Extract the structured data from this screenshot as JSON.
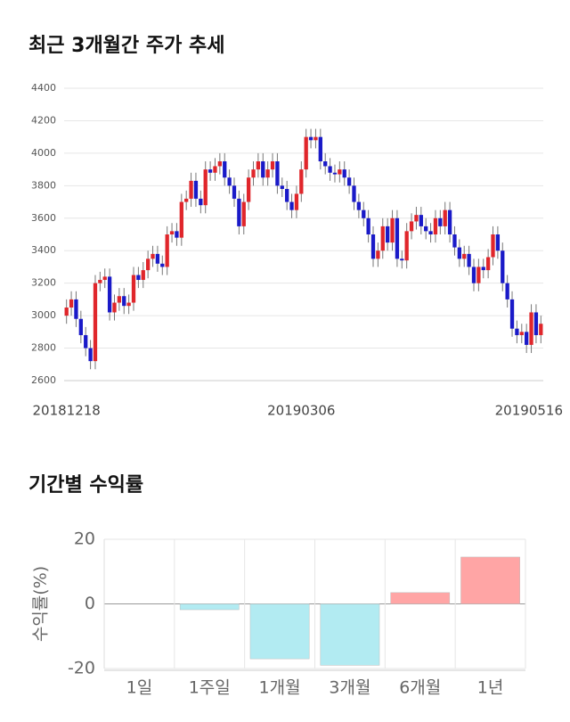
{
  "chart_data": [
    {
      "type": "candlestick",
      "title": "최근 3개월간 주가 추세",
      "categories": [
        "20181218",
        null,
        null,
        null,
        null,
        null,
        null,
        null,
        null,
        null,
        null,
        null,
        null,
        null,
        null,
        null,
        null,
        null,
        null,
        null,
        null,
        null,
        null,
        null,
        null,
        null,
        null,
        null,
        null,
        null,
        null,
        null,
        null,
        null,
        null,
        null,
        null,
        null,
        null,
        null,
        null,
        null,
        null,
        null,
        null,
        null,
        null,
        null,
        null,
        "20190306",
        null,
        null,
        null,
        null,
        null,
        null,
        null,
        null,
        null,
        null,
        null,
        null,
        null,
        null,
        null,
        null,
        null,
        null,
        null,
        null,
        null,
        null,
        null,
        null,
        null,
        null,
        null,
        null,
        null,
        null,
        null,
        null,
        null,
        null,
        null,
        null,
        null,
        null,
        null,
        null,
        null,
        null,
        null,
        null,
        null,
        null,
        null,
        null,
        null,
        "20190516"
      ],
      "open": [
        3000,
        3050,
        3100,
        2980,
        2880,
        2800,
        2720,
        3200,
        3220,
        3240,
        3020,
        3080,
        3120,
        3060,
        3080,
        3250,
        3220,
        3280,
        3350,
        3380,
        3320,
        3300,
        3500,
        3520,
        3480,
        3700,
        3720,
        3830,
        3720,
        3680,
        3900,
        3880,
        3920,
        3950,
        3850,
        3800,
        3720,
        3550,
        3700,
        3850,
        3900,
        3950,
        3850,
        3900,
        3950,
        3800,
        3780,
        3700,
        3650,
        3750,
        3900,
        4100,
        4080,
        4100,
        3950,
        3920,
        3880,
        3870,
        3900,
        3850,
        3800,
        3700,
        3650,
        3600,
        3500,
        3350,
        3400,
        3550,
        3450,
        3600,
        3350,
        3340,
        3520,
        3580,
        3620,
        3550,
        3520,
        3500,
        3600,
        3550,
        3650,
        3500,
        3420,
        3350,
        3380,
        3300,
        3200,
        3300,
        3280,
        3360,
        3500,
        3400,
        3200,
        3100,
        2920,
        2880,
        2900,
        2820,
        3020,
        2880
      ],
      "high": [
        3100,
        3150,
        3150,
        3030,
        2930,
        2850,
        3250,
        3270,
        3290,
        3290,
        3130,
        3170,
        3170,
        3130,
        3300,
        3300,
        3330,
        3400,
        3430,
        3430,
        3370,
        3550,
        3570,
        3570,
        3750,
        3770,
        3880,
        3880,
        3770,
        3950,
        3950,
        3970,
        4000,
        4000,
        3900,
        3850,
        3770,
        3750,
        3900,
        3950,
        4000,
        4000,
        3950,
        4000,
        4000,
        3850,
        3830,
        3750,
        3800,
        3950,
        4150,
        4150,
        4150,
        4150,
        4000,
        3970,
        3930,
        3950,
        3950,
        3900,
        3850,
        3750,
        3700,
        3650,
        3550,
        3450,
        3600,
        3600,
        3650,
        3650,
        3400,
        3570,
        3630,
        3670,
        3670,
        3600,
        3570,
        3650,
        3650,
        3700,
        3700,
        3550,
        3470,
        3430,
        3430,
        3350,
        3350,
        3350,
        3410,
        3550,
        3550,
        3450,
        3250,
        3150,
        2970,
        2950,
        2950,
        3070,
        3070,
        3000
      ],
      "low": [
        2950,
        3000,
        2930,
        2830,
        2750,
        2670,
        2670,
        3150,
        3170,
        2970,
        2970,
        3030,
        3010,
        3010,
        3030,
        3170,
        3170,
        3230,
        3300,
        3270,
        3250,
        3250,
        3450,
        3430,
        3430,
        3650,
        3670,
        3670,
        3630,
        3630,
        3830,
        3830,
        3870,
        3800,
        3750,
        3670,
        3500,
        3500,
        3650,
        3800,
        3850,
        3800,
        3800,
        3850,
        3750,
        3730,
        3650,
        3600,
        3600,
        3700,
        3850,
        4030,
        4030,
        3900,
        3870,
        3830,
        3820,
        3820,
        3800,
        3750,
        3650,
        3600,
        3550,
        3450,
        3300,
        3300,
        3350,
        3400,
        3400,
        3300,
        3290,
        3290,
        3470,
        3530,
        3500,
        3470,
        3450,
        3450,
        3500,
        3500,
        3450,
        3370,
        3300,
        3300,
        3250,
        3150,
        3150,
        3230,
        3230,
        3310,
        3350,
        3150,
        3050,
        2870,
        2830,
        2830,
        2770,
        2770,
        2830,
        2830
      ],
      "close": [
        3050,
        3100,
        2980,
        2880,
        2800,
        2720,
        3200,
        3220,
        3240,
        3020,
        3080,
        3120,
        3060,
        3080,
        3250,
        3220,
        3280,
        3350,
        3380,
        3320,
        3300,
        3500,
        3520,
        3480,
        3700,
        3720,
        3830,
        3720,
        3680,
        3900,
        3880,
        3920,
        3950,
        3850,
        3800,
        3720,
        3550,
        3700,
        3850,
        3900,
        3950,
        3850,
        3900,
        3950,
        3800,
        3780,
        3700,
        3650,
        3750,
        3900,
        4100,
        4080,
        4100,
        3950,
        3920,
        3880,
        3870,
        3900,
        3850,
        3800,
        3700,
        3650,
        3600,
        3500,
        3350,
        3400,
        3550,
        3450,
        3600,
        3350,
        3340,
        3520,
        3580,
        3620,
        3550,
        3520,
        3500,
        3600,
        3550,
        3650,
        3500,
        3420,
        3350,
        3380,
        3300,
        3200,
        3300,
        3280,
        3360,
        3500,
        3400,
        3200,
        3100,
        2920,
        2880,
        2900,
        2820,
        3020,
        2880,
        2950
      ],
      "up_color": "#e0262b",
      "down_color": "#1a1ac8",
      "ylim": [
        2600,
        4400
      ],
      "yticks": [
        2600,
        2800,
        3000,
        3200,
        3400,
        3600,
        3800,
        4000,
        4200,
        4400
      ],
      "grid": true
    },
    {
      "type": "bar",
      "title": "기간별 수익률",
      "y_label": "수익률(%)",
      "categories": [
        "1일",
        "1주일",
        "1개월",
        "3개월",
        "6개월",
        "1년"
      ],
      "values": [
        0,
        -1.8,
        -17,
        -19,
        3.5,
        14.5
      ],
      "colors": [
        "#ffa5a5",
        "#b2ebf2",
        "#b2ebf2",
        "#b2ebf2",
        "#ffa5a5",
        "#ffa5a5"
      ],
      "ylim": [
        -20,
        20
      ],
      "yticks": [
        -20,
        0,
        20
      ],
      "grid": true
    }
  ]
}
